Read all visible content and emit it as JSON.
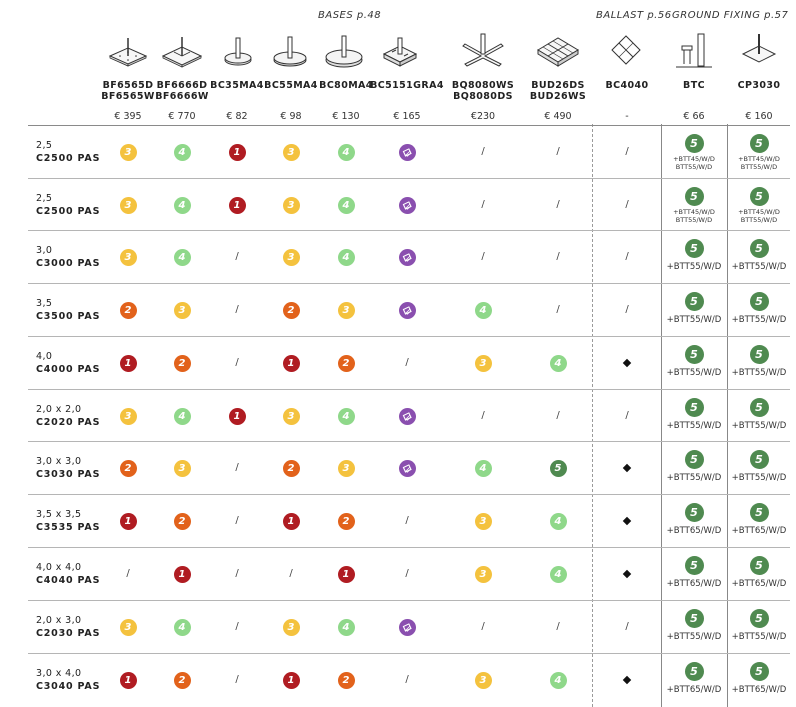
{
  "sections": {
    "bases": "BASES p.48",
    "ballast": "BALLAST p.56",
    "ground_fixing": "GROUND FIXING p.57"
  },
  "columns": [
    {
      "id": "bf6565",
      "code": "BF6565D\nBF6565W",
      "price": "€ 395",
      "icon": "square-plate-icon"
    },
    {
      "id": "bf6666",
      "code": "BF6666D\nBF6666W",
      "price": "€ 770",
      "icon": "square-plate-icon"
    },
    {
      "id": "bc35",
      "code": "BC35MA4",
      "price": "€ 82",
      "icon": "round-base-icon"
    },
    {
      "id": "bc55",
      "code": "BC55MA4",
      "price": "€ 98",
      "icon": "round-base-icon"
    },
    {
      "id": "bc80",
      "code": "BC80MA4",
      "price": "€ 130",
      "icon": "round-base-icon"
    },
    {
      "id": "bc5151",
      "code": "BC5151GRA4",
      "price": "€ 165",
      "icon": "granite-base-icon"
    },
    {
      "id": "bq8080",
      "code": "BQ8080WS\nBQ8080DS",
      "price": "€230",
      "icon": "cross-base-icon"
    },
    {
      "id": "bud26",
      "code": "BUD26DS\nBUD26WS",
      "price": "€ 490",
      "icon": "grid-base-icon"
    },
    {
      "id": "bc4040",
      "code": "BC4040",
      "price": "-",
      "icon": "ballast-frame-icon"
    },
    {
      "id": "btc",
      "code": "BTC",
      "price": "€ 66",
      "icon": "ground-tube-icon"
    },
    {
      "id": "cp3030",
      "code": "CP3030",
      "price": "€ 160",
      "icon": "ground-plate-icon"
    }
  ],
  "colors": {
    "1": "#b01c22",
    "2": "#e2621b",
    "3": "#f4c23e",
    "4": "#8fd88a",
    "5": "#4f8a50",
    "g": "#8a4faf"
  },
  "rows": [
    {
      "size": "2,5",
      "code": "C2500 PAS",
      "cells": [
        "3",
        "4",
        "1",
        "3",
        "4",
        "g",
        "/",
        "/",
        "/"
      ],
      "btc": [
        "+BTT45/W/D",
        "BTT55/W/D"
      ],
      "cp": [
        "+BTT45/W/D",
        "BTT55/W/D"
      ]
    },
    {
      "size": "2,5",
      "code": "C2500 PAS",
      "cells": [
        "3",
        "4",
        "1",
        "3",
        "4",
        "g",
        "/",
        "/",
        "/"
      ],
      "btc": [
        "+BTT45/W/D",
        "BTT55/W/D"
      ],
      "cp": [
        "+BTT45/W/D",
        "BTT55/W/D"
      ]
    },
    {
      "size": "3,0",
      "code": "C3000 PAS",
      "cells": [
        "3",
        "4",
        "/",
        "3",
        "4",
        "g",
        "/",
        "/",
        "/"
      ],
      "btc": [
        "+BTT55/W/D"
      ],
      "cp": [
        "+BTT55/W/D"
      ]
    },
    {
      "size": "3,5",
      "code": "C3500 PAS",
      "cells": [
        "2",
        "3",
        "/",
        "2",
        "3",
        "g",
        "4",
        "/",
        "/"
      ],
      "btc": [
        "+BTT55/W/D"
      ],
      "cp": [
        "+BTT55/W/D"
      ]
    },
    {
      "size": "4,0",
      "code": "C4000 PAS",
      "cells": [
        "1",
        "2",
        "/",
        "1",
        "2",
        "/",
        "3",
        "4",
        "d"
      ],
      "btc": [
        "+BTT55/W/D"
      ],
      "cp": [
        "+BTT55/W/D"
      ]
    },
    {
      "size": "2,0 x 2,0",
      "code": "C2020 PAS",
      "cells": [
        "3",
        "4",
        "1",
        "3",
        "4",
        "g",
        "/",
        "/",
        "/"
      ],
      "btc": [
        "+BTT55/W/D"
      ],
      "cp": [
        "+BTT55/W/D"
      ]
    },
    {
      "size": "3,0 x 3,0",
      "code": "C3030 PAS",
      "cells": [
        "2",
        "3",
        "/",
        "2",
        "3",
        "g",
        "4",
        "5",
        "d"
      ],
      "btc": [
        "+BTT55/W/D"
      ],
      "cp": [
        "+BTT55/W/D"
      ]
    },
    {
      "size": "3,5 x 3,5",
      "code": "C3535 PAS",
      "cells": [
        "1",
        "2",
        "/",
        "1",
        "2",
        "/",
        "3",
        "4",
        "d"
      ],
      "btc": [
        "+BTT65/W/D"
      ],
      "cp": [
        "+BTT65/W/D"
      ]
    },
    {
      "size": "4,0 x 4,0",
      "code": "C4040 PAS",
      "cells": [
        "/",
        "1",
        "/",
        "/",
        "1",
        "/",
        "3",
        "4",
        "d"
      ],
      "btc": [
        "+BTT65/W/D"
      ],
      "cp": [
        "+BTT65/W/D"
      ]
    },
    {
      "size": "2,0 x 3,0",
      "code": "C2030 PAS",
      "cells": [
        "3",
        "4",
        "/",
        "3",
        "4",
        "g",
        "/",
        "/",
        "/"
      ],
      "btc": [
        "+BTT55/W/D"
      ],
      "cp": [
        "+BTT55/W/D"
      ]
    },
    {
      "size": "3,0 x 4,0",
      "code": "C3040 PAS",
      "cells": [
        "1",
        "2",
        "/",
        "1",
        "2",
        "/",
        "3",
        "4",
        "d"
      ],
      "btc": [
        "+BTT65/W/D"
      ],
      "cp": [
        "+BTT65/W/D"
      ]
    }
  ],
  "ground_badge": "5"
}
